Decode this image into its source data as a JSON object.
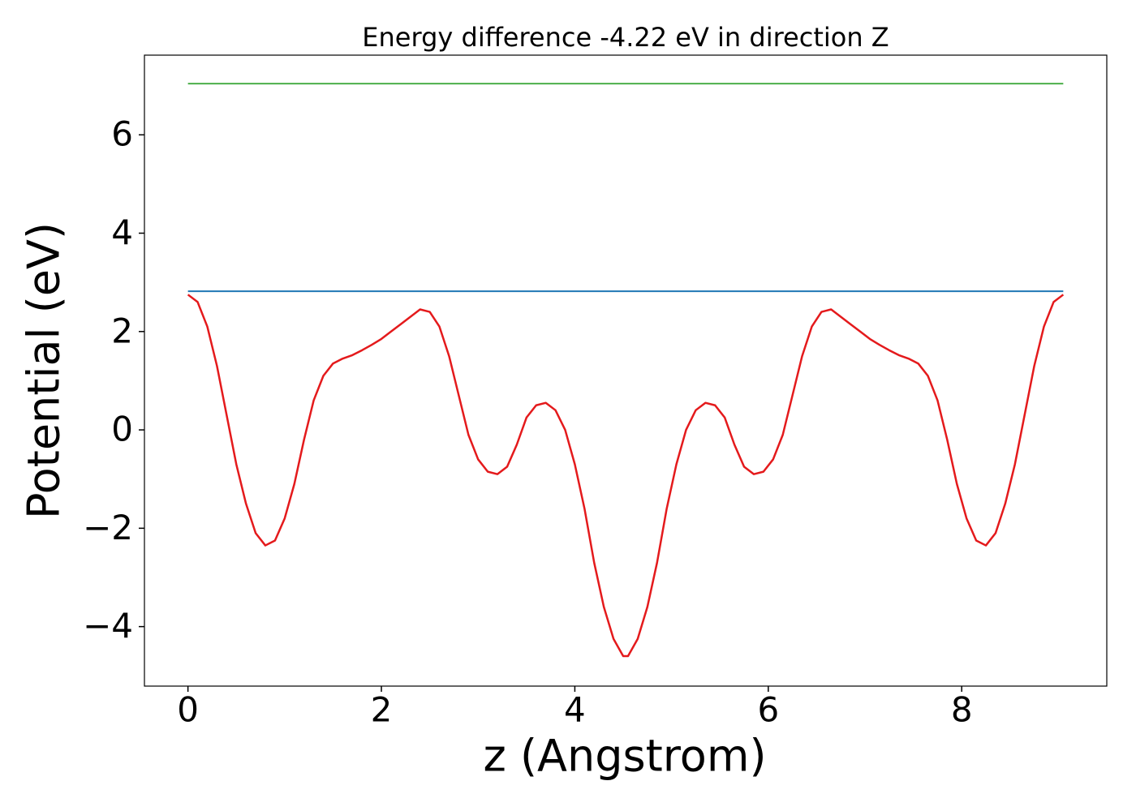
{
  "chart_data": {
    "type": "line",
    "title": "Energy difference -4.22 eV in direction Z",
    "xlabel": "z (Angstrom)",
    "ylabel": "Potential (eV)",
    "xlim": [
      -0.45,
      9.5
    ],
    "ylim": [
      -5.21,
      7.62
    ],
    "xticks": [
      0,
      2,
      4,
      6,
      8
    ],
    "yticks": [
      {
        "value": -4,
        "label": "−4"
      },
      {
        "value": -2,
        "label": "−2"
      },
      0,
      2,
      4,
      6
    ],
    "grid": false,
    "series": [
      {
        "color": "#e41a1c",
        "x": [
          0,
          0.1,
          0.2,
          0.3,
          0.4,
          0.5,
          0.6,
          0.7,
          0.8,
          0.9,
          1.0,
          1.1,
          1.2,
          1.3,
          1.4,
          1.5,
          1.6,
          1.7,
          1.8,
          1.9,
          2.0,
          2.1,
          2.2,
          2.3,
          2.4,
          2.5,
          2.6,
          2.7,
          2.8,
          2.9,
          3.0,
          3.1,
          3.2,
          3.3,
          3.4,
          3.5,
          3.6,
          3.7,
          3.8,
          3.9,
          4.0,
          4.1,
          4.2,
          4.3,
          4.4,
          4.5,
          4.55,
          4.65,
          4.75,
          4.85,
          4.95,
          5.05,
          5.15,
          5.25,
          5.35,
          5.45,
          5.55,
          5.65,
          5.75,
          5.85,
          5.95,
          6.05,
          6.15,
          6.25,
          6.35,
          6.45,
          6.55,
          6.65,
          6.75,
          6.85,
          6.95,
          7.05,
          7.15,
          7.25,
          7.35,
          7.45,
          7.55,
          7.65,
          7.75,
          7.85,
          7.95,
          8.05,
          8.15,
          8.25,
          8.35,
          8.45,
          8.55,
          8.65,
          8.75,
          8.85,
          8.95,
          9.05
        ],
        "values": [
          2.75,
          2.6,
          2.1,
          1.3,
          0.3,
          -0.7,
          -1.5,
          -2.1,
          -2.35,
          -2.25,
          -1.8,
          -1.1,
          -0.2,
          0.6,
          1.1,
          1.35,
          1.45,
          1.52,
          1.62,
          1.73,
          1.85,
          2.0,
          2.15,
          2.3,
          2.45,
          2.4,
          2.1,
          1.5,
          0.7,
          -0.1,
          -0.6,
          -0.85,
          -0.9,
          -0.75,
          -0.3,
          0.25,
          0.5,
          0.55,
          0.4,
          0.0,
          -0.7,
          -1.6,
          -2.7,
          -3.6,
          -4.25,
          -4.6,
          -4.6,
          -4.25,
          -3.6,
          -2.7,
          -1.6,
          -0.7,
          0.0,
          0.4,
          0.55,
          0.5,
          0.25,
          -0.3,
          -0.75,
          -0.9,
          -0.85,
          -0.6,
          -0.1,
          0.7,
          1.5,
          2.1,
          2.4,
          2.45,
          2.3,
          2.15,
          2.0,
          1.85,
          1.73,
          1.62,
          1.52,
          1.45,
          1.35,
          1.1,
          0.6,
          -0.2,
          -1.1,
          -1.8,
          -2.25,
          -2.35,
          -2.1,
          -1.5,
          -0.7,
          0.3,
          1.3,
          2.1,
          2.6,
          2.75
        ]
      },
      {
        "color": "#1f77b4",
        "x": [
          0,
          9.05
        ],
        "values": [
          2.82,
          2.82
        ]
      },
      {
        "color": "#4daf4a",
        "x": [
          0,
          9.05
        ],
        "values": [
          7.04,
          7.04
        ]
      }
    ]
  }
}
